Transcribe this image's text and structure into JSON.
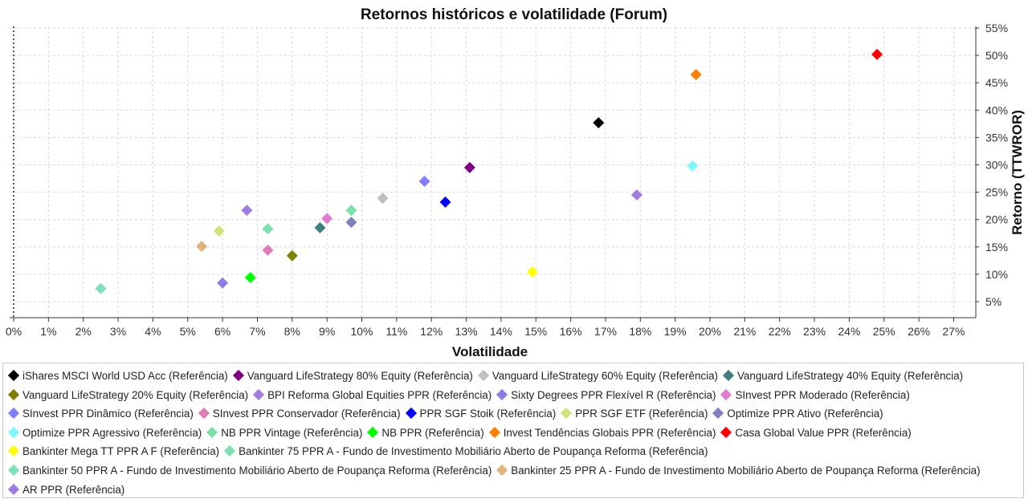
{
  "chart_data": {
    "type": "scatter",
    "title": "Retornos históricos e volatilidade (Forum)",
    "xlabel": "Volatilidade",
    "ylabel": "Retorno (TTWROR)",
    "xlim": [
      0,
      27
    ],
    "ylim": [
      5,
      55
    ],
    "x_ticks": [
      "0%",
      "1%",
      "2%",
      "3%",
      "4%",
      "5%",
      "6%",
      "7%",
      "8%",
      "9%",
      "10%",
      "11%",
      "12%",
      "13%",
      "14%",
      "15%",
      "16%",
      "17%",
      "18%",
      "19%",
      "20%",
      "21%",
      "22%",
      "23%",
      "24%",
      "25%",
      "26%",
      "27%"
    ],
    "y_ticks": [
      "5%",
      "10%",
      "15%",
      "20%",
      "25%",
      "30%",
      "35%",
      "40%",
      "45%",
      "50%",
      "55%"
    ],
    "y_axis_position": "right",
    "grid": true,
    "legend_placement": "bottom",
    "series": [
      {
        "name": "iShares MSCI World USD Acc (Referência)",
        "color": "#000000",
        "x": 16.8,
        "y": 37.7
      },
      {
        "name": "Vanguard LifeStrategy 80% Equity (Referência)",
        "color": "#7f007f",
        "x": 13.1,
        "y": 29.5
      },
      {
        "name": "Vanguard LifeStrategy 60% Equity (Referência)",
        "color": "#bfbfbf",
        "x": 10.6,
        "y": 23.9
      },
      {
        "name": "Vanguard LifeStrategy 40% Equity (Referência)",
        "color": "#3f7f7f",
        "x": 8.8,
        "y": 18.5
      },
      {
        "name": "Vanguard LifeStrategy 20% Equity (Referência)",
        "color": "#7f7f00",
        "x": 8.0,
        "y": 13.4
      },
      {
        "name": "BPI Reforma Global Equities PPR (Referência)",
        "color": "#a07ce0",
        "x": 17.9,
        "y": 24.5
      },
      {
        "name": "Sixty Degrees PPR Flexível R (Referência)",
        "color": "#8c7ce6",
        "x": 6.0,
        "y": 8.4
      },
      {
        "name": "SInvest PPR Moderado (Referência)",
        "color": "#e07ccf",
        "x": 9.0,
        "y": 20.2
      },
      {
        "name": "SInvest PPR Dinâmico (Referência)",
        "color": "#7f7fff",
        "x": 11.8,
        "y": 27.0
      },
      {
        "name": "SInvest PPR Conservador (Referência)",
        "color": "#e07cb8",
        "x": 7.3,
        "y": 14.4
      },
      {
        "name": "PPR SGF Stoik (Referência)",
        "color": "#0000ff",
        "x": 12.4,
        "y": 23.2
      },
      {
        "name": "PPR SGF ETF (Referência)",
        "color": "#d4e07c",
        "x": 5.9,
        "y": 17.9
      },
      {
        "name": "Optimize PPR Ativo (Referência)",
        "color": "#7f7fbf",
        "x": 9.7,
        "y": 19.5
      },
      {
        "name": "Optimize PPR Agressivo (Referência)",
        "color": "#7ff7ff",
        "x": 19.5,
        "y": 29.8
      },
      {
        "name": "NB PPR Vintage (Referência)",
        "color": "#7ce0a8",
        "x": 9.7,
        "y": 21.7
      },
      {
        "name": "NB PPR (Referência)",
        "color": "#00ff00",
        "x": 6.8,
        "y": 9.4
      },
      {
        "name": "Invest Tendências Globais PPR (Referência)",
        "color": "#ff7f00",
        "x": 19.6,
        "y": 46.5
      },
      {
        "name": "Casa Global Value PPR (Referência)",
        "color": "#ff0000",
        "x": 24.8,
        "y": 50.2
      },
      {
        "name": "Bankinter Mega TT PPR A F (Referência)",
        "color": "#ffff00",
        "x": 14.9,
        "y": 10.4
      },
      {
        "name": "Bankinter 75 PPR A - Fundo de Investimento Mobiliário Aberto de Poupança Reforma (Referência)",
        "color": "#7ce0b0",
        "x": 7.3,
        "y": 18.3
      },
      {
        "name": "Bankinter 50 PPR A - Fundo de Investimento Mobiliário Aberto de Poupança Reforma (Referência)",
        "color": "#7ce0b8",
        "x": 2.5,
        "y": 7.4
      },
      {
        "name": "Bankinter 25 PPR A - Fundo de Investimento Mobiliário Aberto de Poupança Reforma (Referência)",
        "color": "#e0b47c",
        "x": 5.4,
        "y": 15.1
      },
      {
        "name": "AR PPR (Referência)",
        "color": "#a07ce0",
        "x": 6.7,
        "y": 21.7
      }
    ]
  }
}
